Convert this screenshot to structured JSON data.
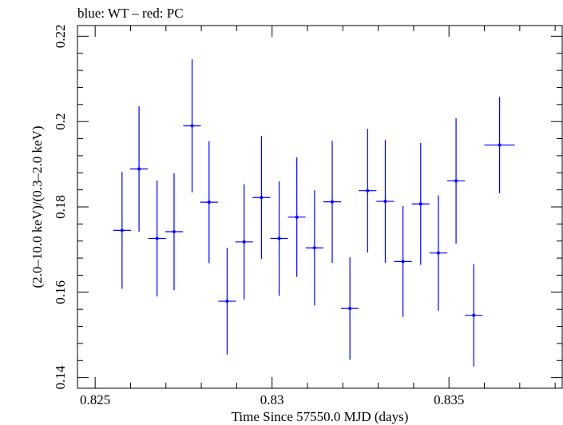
{
  "chart_data": {
    "type": "scatter",
    "title": "blue: WT – red: PC",
    "xlabel": "Time Since 57550.0 MJD (days)",
    "ylabel": "(2.0–10.0 keV)/(0.3–2.0 keV)",
    "xlim": [
      0.8245,
      0.8382
    ],
    "ylim": [
      0.1375,
      0.2225
    ],
    "xticks": [
      0.825,
      0.83,
      0.835
    ],
    "xtick_labels": [
      "0.825",
      "0.83",
      "0.835"
    ],
    "yticks": [
      0.14,
      0.16,
      0.18,
      0.2,
      0.22
    ],
    "ytick_labels": [
      "0.14",
      "0.16",
      "0.18",
      "0.2",
      "0.22"
    ],
    "grid": false,
    "series": [
      {
        "color": "#0000ff",
        "points": [
          {
            "x": 0.82576,
            "xerr": 0.00025,
            "y": 0.1745,
            "yerr": 0.0137
          },
          {
            "x": 0.82624,
            "xerr": 0.00025,
            "y": 0.1889,
            "yerr": 0.0147
          },
          {
            "x": 0.82675,
            "xerr": 0.00025,
            "y": 0.1726,
            "yerr": 0.0136
          },
          {
            "x": 0.82723,
            "xerr": 0.00025,
            "y": 0.1742,
            "yerr": 0.0137
          },
          {
            "x": 0.82774,
            "xerr": 0.00025,
            "y": 0.199,
            "yerr": 0.0156
          },
          {
            "x": 0.82822,
            "xerr": 0.00025,
            "y": 0.1811,
            "yerr": 0.0143
          },
          {
            "x": 0.82873,
            "xerr": 0.00025,
            "y": 0.1579,
            "yerr": 0.0125
          },
          {
            "x": 0.82921,
            "xerr": 0.00025,
            "y": 0.1718,
            "yerr": 0.0135
          },
          {
            "x": 0.8297,
            "xerr": 0.00025,
            "y": 0.1822,
            "yerr": 0.0144
          },
          {
            "x": 0.8302,
            "xerr": 0.00025,
            "y": 0.1726,
            "yerr": 0.0134
          },
          {
            "x": 0.8307,
            "xerr": 0.00025,
            "y": 0.1776,
            "yerr": 0.014
          },
          {
            "x": 0.8312,
            "xerr": 0.00025,
            "y": 0.1704,
            "yerr": 0.0135
          },
          {
            "x": 0.8317,
            "xerr": 0.00025,
            "y": 0.1812,
            "yerr": 0.0143
          },
          {
            "x": 0.8322,
            "xerr": 0.00025,
            "y": 0.1562,
            "yerr": 0.012
          },
          {
            "x": 0.8327,
            "xerr": 0.00025,
            "y": 0.1838,
            "yerr": 0.0145
          },
          {
            "x": 0.8332,
            "xerr": 0.00025,
            "y": 0.1813,
            "yerr": 0.0144
          },
          {
            "x": 0.8337,
            "xerr": 0.00025,
            "y": 0.1672,
            "yerr": 0.013
          },
          {
            "x": 0.8342,
            "xerr": 0.00025,
            "y": 0.1807,
            "yerr": 0.0143
          },
          {
            "x": 0.8347,
            "xerr": 0.00025,
            "y": 0.1692,
            "yerr": 0.0135
          },
          {
            "x": 0.8352,
            "xerr": 0.00025,
            "y": 0.1861,
            "yerr": 0.0147
          },
          {
            "x": 0.8357,
            "xerr": 0.00025,
            "y": 0.1546,
            "yerr": 0.012
          },
          {
            "x": 0.83643,
            "xerr": 0.00043,
            "y": 0.1945,
            "yerr": 0.0113
          }
        ]
      }
    ]
  }
}
